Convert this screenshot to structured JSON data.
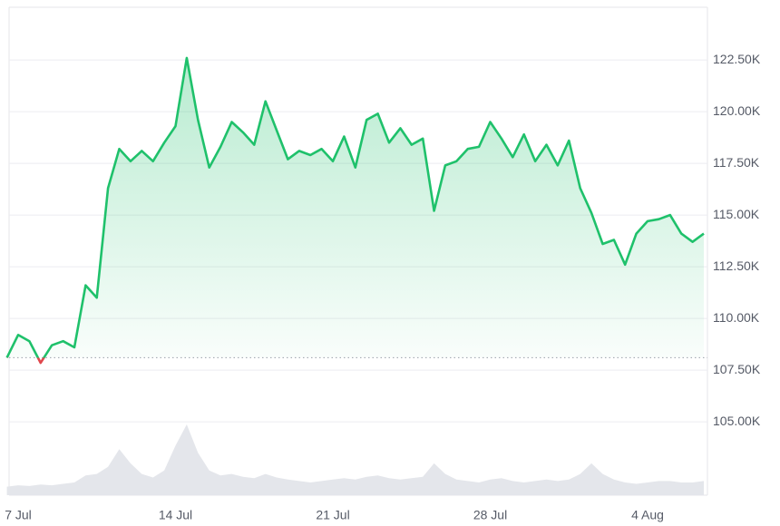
{
  "chart_data": {
    "type": "line",
    "categories": [
      null,
      "7 Jul",
      null,
      null,
      null,
      null,
      null,
      null,
      null,
      null,
      null,
      null,
      null,
      null,
      null,
      "14 Jul",
      null,
      null,
      null,
      null,
      null,
      null,
      null,
      null,
      null,
      null,
      null,
      null,
      null,
      "21 Jul",
      null,
      null,
      null,
      null,
      null,
      null,
      null,
      null,
      null,
      null,
      null,
      null,
      null,
      "28 Jul",
      null,
      null,
      null,
      null,
      null,
      null,
      null,
      null,
      null,
      null,
      null,
      null,
      null,
      "4 Aug",
      null,
      null,
      null,
      null,
      null
    ],
    "values": [
      108100,
      109200,
      108900,
      107850,
      108700,
      108900,
      108600,
      111600,
      111000,
      116300,
      118200,
      117600,
      118100,
      117600,
      118500,
      119300,
      122600,
      119600,
      117300,
      118300,
      119500,
      119000,
      118400,
      120500,
      119100,
      117700,
      118100,
      117900,
      118200,
      117600,
      118800,
      117300,
      119600,
      119900,
      118500,
      119200,
      118400,
      118700,
      115200,
      117400,
      117600,
      118200,
      118300,
      119500,
      118700,
      117800,
      118900,
      117600,
      118400,
      117400,
      118600,
      116300,
      115100,
      113600,
      113800,
      112600,
      114100,
      114700,
      114800,
      115000,
      114100,
      113700,
      114100
    ],
    "volume": [
      12,
      14,
      13,
      15,
      14,
      16,
      18,
      28,
      30,
      40,
      65,
      45,
      30,
      25,
      35,
      70,
      100,
      60,
      35,
      28,
      30,
      26,
      24,
      30,
      25,
      22,
      20,
      18,
      20,
      22,
      24,
      22,
      26,
      28,
      24,
      22,
      24,
      26,
      45,
      30,
      22,
      20,
      18,
      22,
      24,
      20,
      18,
      20,
      22,
      20,
      22,
      30,
      45,
      30,
      22,
      18,
      16,
      18,
      20,
      20,
      18,
      18,
      20
    ],
    "volume_ylim": [
      0,
      100
    ],
    "color": "#1fc16b",
    "down_color": "#e0474c",
    "volume_color": "#e4e6eb",
    "ylim": [
      101450,
      125050
    ],
    "yticks": [
      {
        "value": 105000,
        "label": "105.00K"
      },
      {
        "value": 107500,
        "label": "107.50K"
      },
      {
        "value": 110000,
        "label": "110.00K"
      },
      {
        "value": 112500,
        "label": "112.50K"
      },
      {
        "value": 115000,
        "label": "115.00K"
      },
      {
        "value": 117500,
        "label": "117.50K"
      },
      {
        "value": 120000,
        "label": "120.00K"
      },
      {
        "value": 122500,
        "label": "122.50K"
      }
    ],
    "grid": true
  }
}
